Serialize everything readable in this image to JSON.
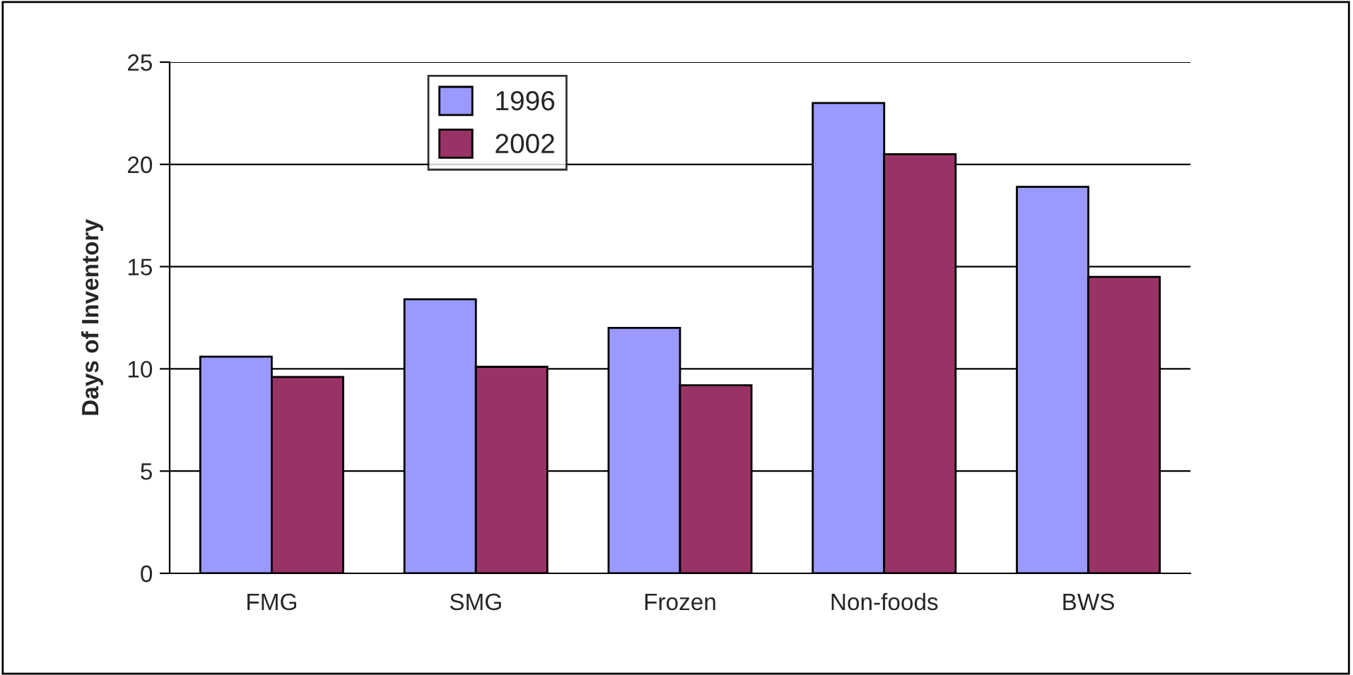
{
  "chart_data": {
    "type": "bar",
    "ylabel": "Days of Inventory",
    "categories": [
      "FMG",
      "SMG",
      "Frozen",
      "Non-foods",
      "BWS"
    ],
    "series": [
      {
        "name": "1996",
        "color": "#9999ff",
        "values": [
          10.6,
          13.4,
          12.0,
          23.0,
          18.9
        ]
      },
      {
        "name": "2002",
        "color": "#993366",
        "values": [
          9.6,
          10.1,
          9.2,
          20.5,
          14.5
        ]
      }
    ],
    "ylim": [
      0,
      25
    ],
    "yticks": [
      0,
      5,
      10,
      15,
      20,
      25
    ],
    "grid": "y",
    "legend": "top left"
  }
}
